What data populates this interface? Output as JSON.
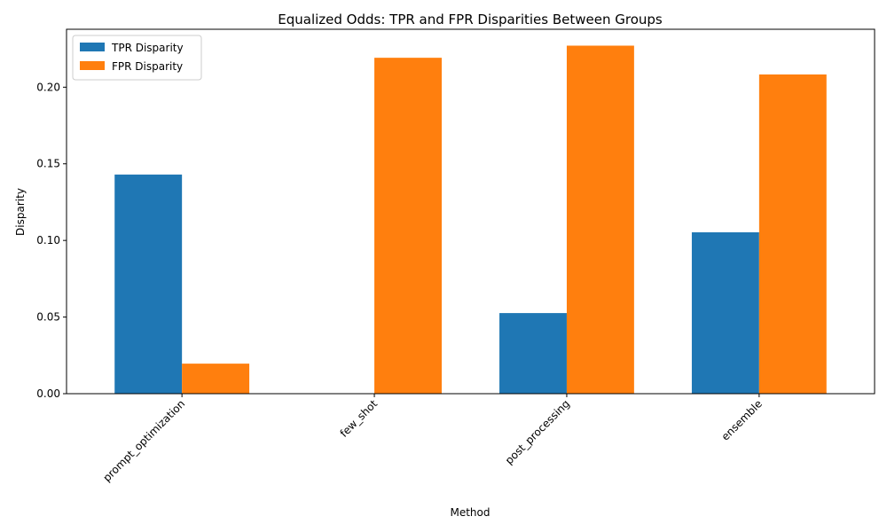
{
  "chart_data": {
    "type": "bar",
    "title": "Equalized Odds: TPR and FPR Disparities Between Groups",
    "xlabel": "Method",
    "ylabel": "Disparity",
    "categories": [
      "prompt_optimization",
      "few_shot",
      "post_processing",
      "ensemble"
    ],
    "series": [
      {
        "name": "TPR Disparity",
        "color": "#1f77b4",
        "values": [
          0.143,
          0.0,
          0.0526,
          0.1053
        ]
      },
      {
        "name": "FPR Disparity",
        "color": "#ff7f0e",
        "values": [
          0.0196,
          0.2192,
          0.2271,
          0.2083
        ]
      }
    ],
    "ylim": [
      0,
      0.2378
    ],
    "yticks": [
      0.0,
      0.05,
      0.1,
      0.15,
      0.2
    ],
    "ytick_labels": [
      "0.00",
      "0.05",
      "0.10",
      "0.15",
      "0.20"
    ],
    "legend_position": "top-left",
    "grid": false
  }
}
